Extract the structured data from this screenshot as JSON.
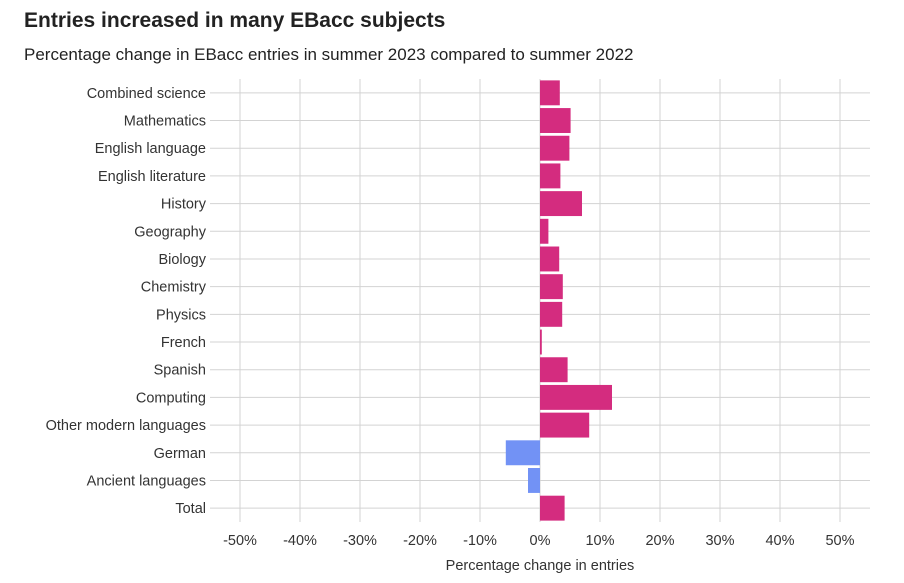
{
  "title": "Entries increased in many EBacc subjects",
  "subtitle": "Percentage change in EBacc entries in summer 2023 compared to summer 2022",
  "chart_data": {
    "type": "bar",
    "orientation": "horizontal",
    "xlabel": "Percentage change in entries",
    "xlim": [
      -55,
      55
    ],
    "xticks": [
      -50,
      -40,
      -30,
      -20,
      -10,
      0,
      10,
      20,
      30,
      40,
      50
    ],
    "xtick_labels": [
      "-50%",
      "-40%",
      "-30%",
      "-20%",
      "-10%",
      "0%",
      "10%",
      "20%",
      "30%",
      "40%",
      "50%"
    ],
    "grid": true,
    "categories": [
      "Combined science",
      "Mathematics",
      "English language",
      "English literature",
      "History",
      "Geography",
      "Biology",
      "Chemistry",
      "Physics",
      "French",
      "Spanish",
      "Computing",
      "Other modern languages",
      "German",
      "Ancient languages",
      "Total"
    ],
    "values": [
      3.3,
      5.1,
      4.9,
      3.4,
      7.0,
      1.4,
      3.2,
      3.8,
      3.7,
      0.3,
      4.6,
      12.0,
      8.2,
      -5.7,
      -2.0,
      4.1
    ],
    "colors": {
      "positive": "#d42c7f",
      "negative": "#7292f5"
    }
  }
}
